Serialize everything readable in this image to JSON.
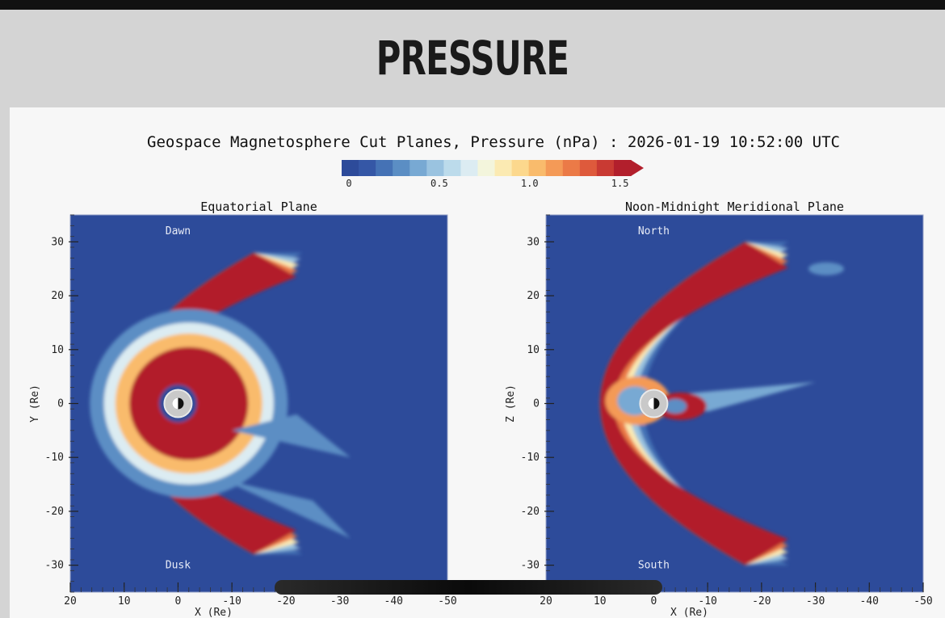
{
  "page": {
    "heading": "PRESSURE"
  },
  "figure": {
    "title": "Geospace Magnetosphere Cut Planes, Pressure (nPa) : 2026-01-19 10:52:00 UTC"
  },
  "colorbar": {
    "tick_labels": [
      "0",
      "0.5",
      "1.0",
      "1.5"
    ],
    "ticks": [
      0,
      0.5,
      1.0,
      1.5
    ],
    "range": [
      0,
      1.6
    ],
    "colors": [
      "#2d4b9a",
      "#3557a6",
      "#4572b5",
      "#5b8ec4",
      "#78a9d3",
      "#9ac3e0",
      "#bcdbeb",
      "#dcecf2",
      "#f3f5dc",
      "#fbeab2",
      "#fcd88d",
      "#f9bb6c",
      "#f49a57",
      "#eb7a47",
      "#de5a3c",
      "#c93a33",
      "#b21f2c"
    ]
  },
  "chart_data": [
    {
      "type": "heatmap",
      "title": "Equatorial Plane",
      "xlabel": "X (Re)",
      "ylabel": "Y (Re)",
      "xlim": [
        20,
        -50
      ],
      "ylim": [
        -35,
        35
      ],
      "x_tick_labels": [
        "20",
        "10",
        "0",
        "-10",
        "-20",
        "-30",
        "-40",
        "-50"
      ],
      "x_ticks": [
        20,
        10,
        0,
        -10,
        -20,
        -30,
        -40,
        -50
      ],
      "y_tick_labels": [
        "30",
        "20",
        "10",
        "0",
        "-10",
        "-20",
        "-30"
      ],
      "y_ticks": [
        30,
        20,
        10,
        0,
        -10,
        -20,
        -30
      ],
      "annotations": [
        {
          "text": "Dawn",
          "x": 0,
          "y": 32
        },
        {
          "text": "Dusk",
          "x": 0,
          "y": -30
        }
      ],
      "background_value": 0.05
    },
    {
      "type": "heatmap",
      "title": "Noon-Midnight Meridional Plane",
      "xlabel": "X (Re)",
      "ylabel": "Z (Re)",
      "xlim": [
        20,
        -50
      ],
      "ylim": [
        -35,
        35
      ],
      "x_tick_labels": [
        "20",
        "10",
        "0",
        "-10",
        "-20",
        "-30",
        "-40",
        "-50"
      ],
      "x_ticks": [
        20,
        10,
        0,
        -10,
        -20,
        -30,
        -40,
        -50
      ],
      "y_tick_labels": [
        "30",
        "20",
        "10",
        "0",
        "-10",
        "-20",
        "-30"
      ],
      "y_ticks": [
        30,
        20,
        10,
        0,
        -10,
        -20,
        -30
      ],
      "annotations": [
        {
          "text": "North",
          "x": 0,
          "y": 32
        },
        {
          "text": "South",
          "x": 0,
          "y": -30
        }
      ],
      "background_value": 0.05
    }
  ]
}
